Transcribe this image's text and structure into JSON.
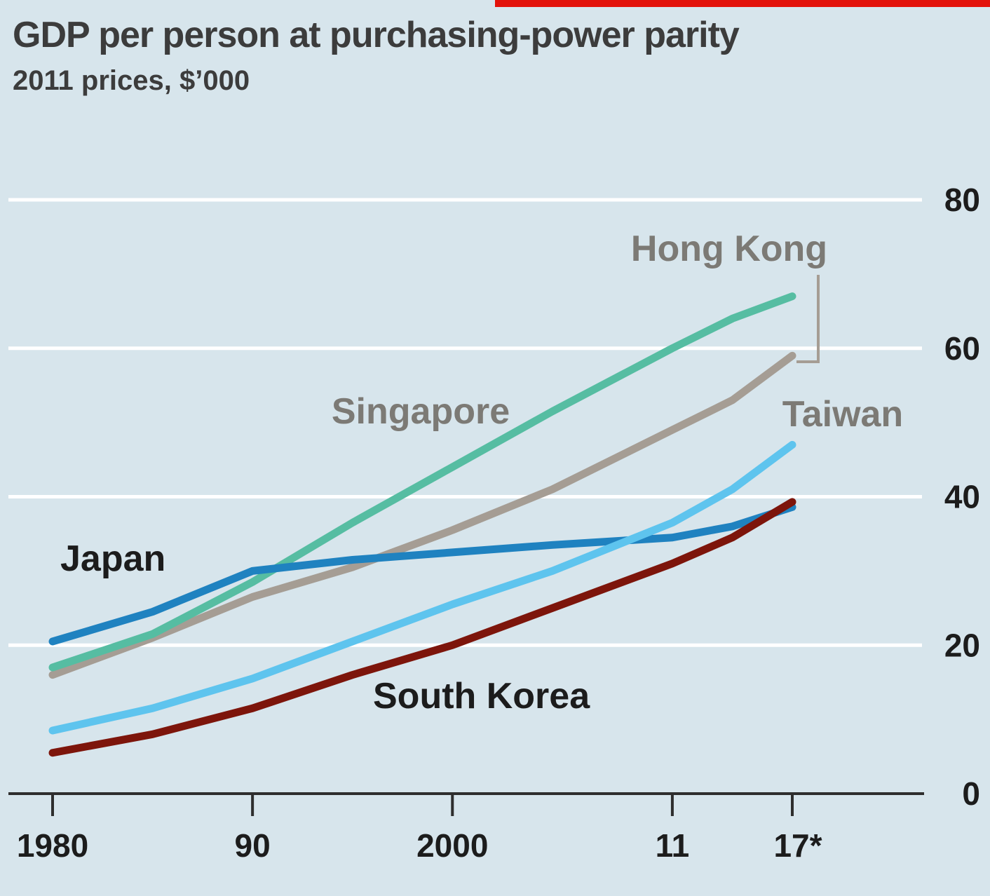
{
  "accent_bar_color": "#e3120b",
  "header": {
    "title": "GDP per person at purchasing-power parity",
    "subtitle": "2011 prices, $’000"
  },
  "chart_data": {
    "type": "line",
    "title": "GDP per person at purchasing-power parity",
    "subtitle": "2011 prices, $’000",
    "x": [
      1980,
      1985,
      1990,
      1995,
      2000,
      2005,
      2011,
      2014,
      2017
    ],
    "x_tick_years": [
      1980,
      1990,
      2000,
      2011,
      2017
    ],
    "x_tick_labels": [
      "1980",
      "90",
      "2000",
      "11",
      "17*"
    ],
    "y_ticks": [
      0,
      20,
      40,
      60,
      80
    ],
    "xlim": [
      1980,
      2017
    ],
    "ylim": [
      0,
      85
    ],
    "grid": "horizontal-white-lines",
    "legend": "inline-series-labels",
    "gridline_color": "#ffffff",
    "axis_color": "#2e2e2e",
    "series": [
      {
        "name": "Hong Kong",
        "color": "#a59d94",
        "label_style": "gray",
        "values": [
          16,
          21,
          26.5,
          30.5,
          35.5,
          41,
          49,
          53,
          59
        ]
      },
      {
        "name": "Singapore",
        "color": "#56bda2",
        "label_style": "gray",
        "values": [
          17,
          21.5,
          28.5,
          36.5,
          44,
          51.5,
          60,
          64,
          67
        ]
      },
      {
        "name": "Japan",
        "color": "#1f82c0",
        "label_style": "dark",
        "values": [
          20.5,
          24.5,
          30,
          31.5,
          32.5,
          33.5,
          34.5,
          36,
          38.6
        ]
      },
      {
        "name": "Taiwan",
        "color": "#5ec4ee",
        "label_style": "gray",
        "values": [
          8.5,
          11.5,
          15.5,
          20.5,
          25.5,
          30,
          36.5,
          41,
          47
        ]
      },
      {
        "name": "South Korea",
        "color": "#7d150b",
        "label_style": "dark",
        "values": [
          5.5,
          8,
          11.5,
          16,
          20,
          25,
          31,
          34.5,
          39.3
        ]
      }
    ],
    "annotations": [
      {
        "name": "hong-kong-connector",
        "type": "elbow-line",
        "color": "#a59d94"
      }
    ]
  }
}
